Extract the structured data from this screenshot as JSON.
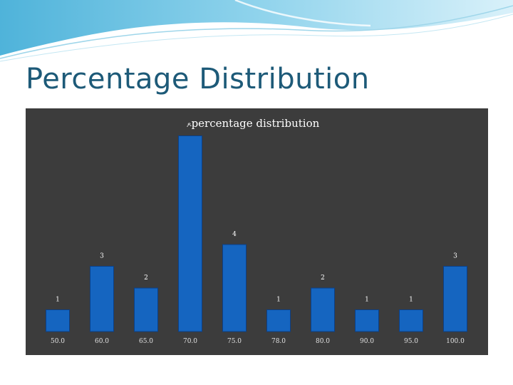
{
  "slide": {
    "title": "Percentage Distribution"
  },
  "chart_data": {
    "type": "bar",
    "title_prefix": "ዶ",
    "title": "percentage distribution",
    "categories": [
      "50.0",
      "60.0",
      "65.0",
      "70.0",
      "75.0",
      "78.0",
      "80.0",
      "90.0",
      "95.0",
      "100.0"
    ],
    "values": [
      1,
      3,
      2,
      9,
      4,
      1,
      2,
      1,
      1,
      3
    ],
    "data_labels": [
      "1",
      "3",
      "2",
      "",
      "4",
      "1",
      "2",
      "1",
      "1",
      "3"
    ],
    "xlabel": "",
    "ylabel": "",
    "ylim": [
      0,
      9
    ],
    "grid": false,
    "legend": "none",
    "colors": {
      "bar": "#1565c0",
      "background": "#3c3c3c",
      "label": "#ffffff",
      "title": "#1d5a78"
    }
  }
}
